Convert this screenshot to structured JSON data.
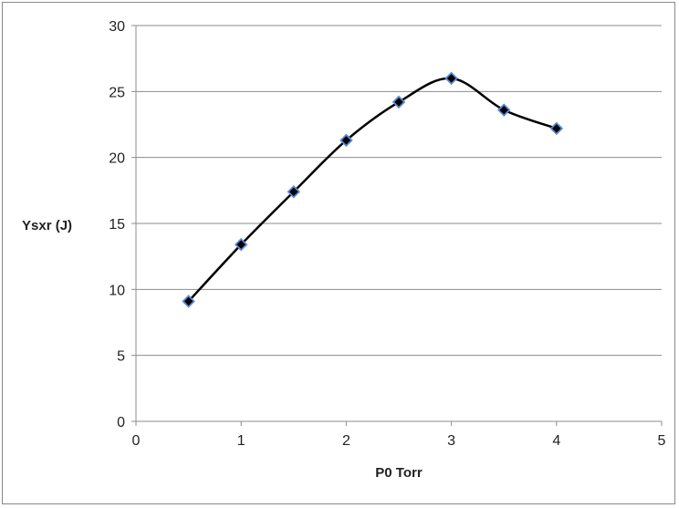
{
  "chart_data": {
    "type": "scatter",
    "title": "",
    "xlabel": "P0  Torr",
    "ylabel": "Ysxr (J)",
    "xlim": [
      0,
      5
    ],
    "ylim": [
      0,
      30
    ],
    "xticks": [
      0,
      1,
      2,
      3,
      4,
      5
    ],
    "yticks": [
      0,
      5,
      10,
      15,
      20,
      25,
      30
    ],
    "grid": "horizontal",
    "legend": "none",
    "line": "smoothed",
    "marker": "diamond",
    "colors": {
      "line": "#000000",
      "marker_fill": "#000000",
      "marker_outline": "#5b8ad6",
      "grid": "#8c8c8c"
    },
    "series": [
      {
        "x": [
          0.5,
          1.0,
          1.5,
          2.0,
          2.5,
          3.0,
          3.5,
          4.0
        ],
        "y": [
          9.1,
          13.4,
          17.4,
          21.3,
          24.2,
          26.0,
          23.6,
          22.2
        ]
      }
    ]
  }
}
